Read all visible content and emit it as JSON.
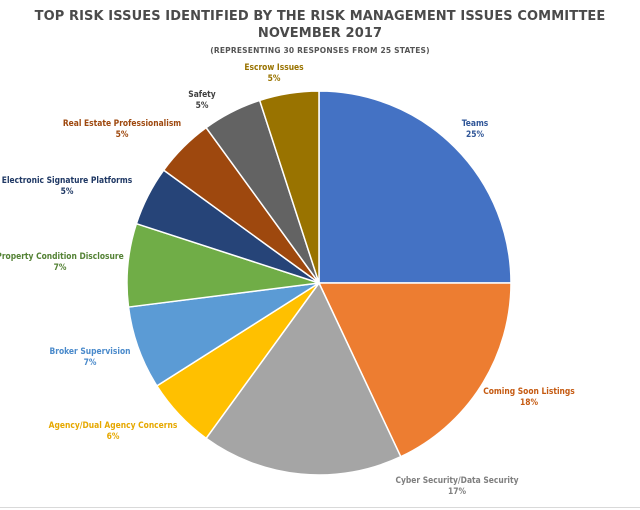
{
  "chart_data": {
    "type": "pie",
    "title_lines": [
      "TOP RISK ISSUES IDENTIFIED BY THE RISK MANAGEMENT ISSUES COMMITTEE",
      "NOVEMBER 2017"
    ],
    "subtitle": "(REPRESENTING 30 RESPONSES FROM 25 STATES)",
    "start_angle_deg": 0,
    "direction": "clockwise",
    "slices": [
      {
        "label": "Teams",
        "value": 25,
        "display": "25%",
        "color": "#4472C4",
        "label_color": "#2F5597"
      },
      {
        "label": "Coming Soon Listings",
        "value": 18,
        "display": "18%",
        "color": "#ED7D31",
        "label_color": "#C55A11"
      },
      {
        "label": "Cyber Security/Data Security",
        "value": 17,
        "display": "17%",
        "color": "#A5A5A5",
        "label_color": "#7F7F7F"
      },
      {
        "label": "Agency/Dual Agency Concerns",
        "value": 6,
        "display": "6%",
        "color": "#FFC000",
        "label_color": "#E6A800"
      },
      {
        "label": "Broker Supervision",
        "value": 7,
        "display": "7%",
        "color": "#5B9BD5",
        "label_color": "#4A8ACB"
      },
      {
        "label": "Property Condition Disclosure",
        "value": 7,
        "display": "7%",
        "color": "#70AD47",
        "label_color": "#548235"
      },
      {
        "label": "Electronic Signature Platforms",
        "value": 5,
        "display": "5%",
        "color": "#264478",
        "label_color": "#1F3864"
      },
      {
        "label": "Real Estate Professionalism",
        "value": 5,
        "display": "5%",
        "color": "#9E480E",
        "label_color": "#9E480E"
      },
      {
        "label": "Safety",
        "value": 5,
        "display": "5%",
        "color": "#636363",
        "label_color": "#404040"
      },
      {
        "label": "Escrow Issues",
        "value": 5,
        "display": "5%",
        "color": "#997300",
        "label_color": "#997300"
      }
    ]
  }
}
